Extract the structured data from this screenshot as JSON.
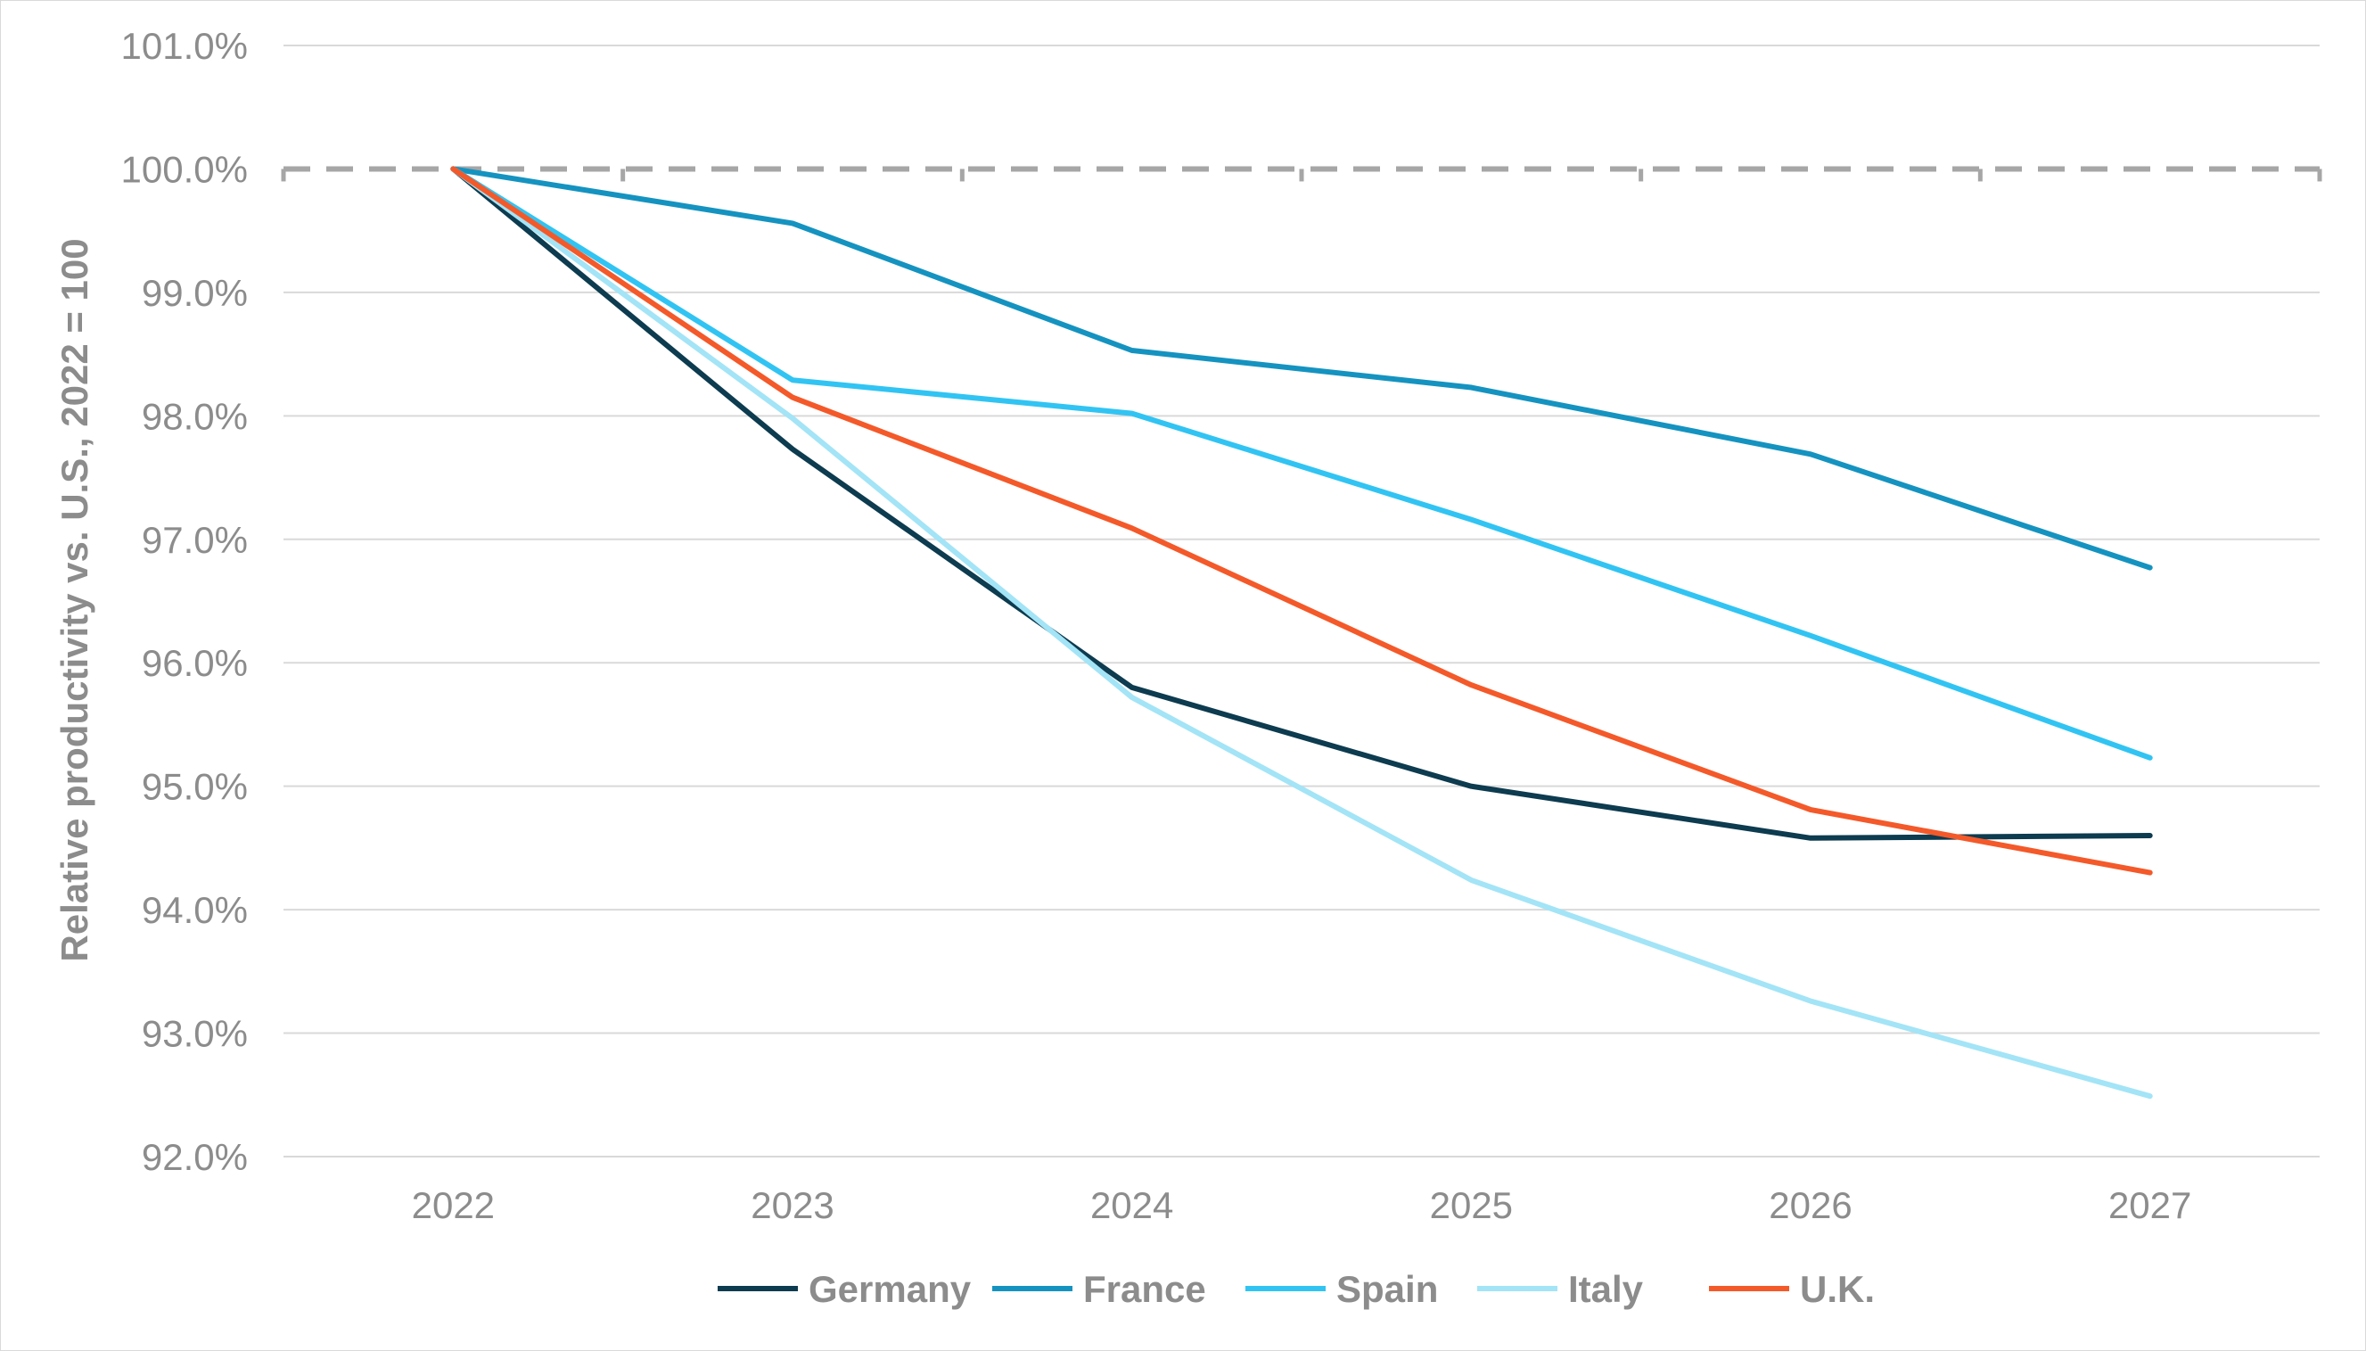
{
  "chart_data": {
    "type": "line",
    "title": "",
    "xlabel": "",
    "ylabel": "Relative productivity vs. U.S., 2022 = 100",
    "x": [
      "2022",
      "2023",
      "2024",
      "2025",
      "2026",
      "2027"
    ],
    "ylim": [
      92.0,
      101.0
    ],
    "y_ticks": [
      92.0,
      93.0,
      94.0,
      95.0,
      96.0,
      97.0,
      98.0,
      99.0,
      100.0,
      101.0
    ],
    "y_tick_labels": [
      "92.0%",
      "93.0%",
      "94.0%",
      "95.0%",
      "96.0%",
      "97.0%",
      "98.0%",
      "99.0%",
      "100.0%",
      "101.0%"
    ],
    "y_format": "percent, one decimal",
    "grid": "horizontal",
    "reference_line": {
      "y": 100.0,
      "style": "dashed",
      "color": "#a6a6a6"
    },
    "legend_position": "bottom",
    "series": [
      {
        "name": "Germany",
        "color": "#0d3b4f",
        "values": [
          100.0,
          97.73,
          95.8,
          95.0,
          94.58,
          94.6
        ]
      },
      {
        "name": "France",
        "color": "#1593c0",
        "values": [
          100.0,
          99.56,
          98.53,
          98.23,
          97.69,
          96.77
        ]
      },
      {
        "name": "Spain",
        "color": "#31c4f3",
        "values": [
          100.0,
          98.29,
          98.02,
          97.16,
          96.22,
          95.23
        ]
      },
      {
        "name": "Italy",
        "color": "#a3e4f7",
        "values": [
          100.0,
          97.98,
          95.72,
          94.24,
          93.26,
          92.49
        ]
      },
      {
        "name": "U.K.",
        "color": "#f4592a",
        "values": [
          100.0,
          98.15,
          97.09,
          95.82,
          94.81,
          94.3
        ]
      }
    ]
  }
}
